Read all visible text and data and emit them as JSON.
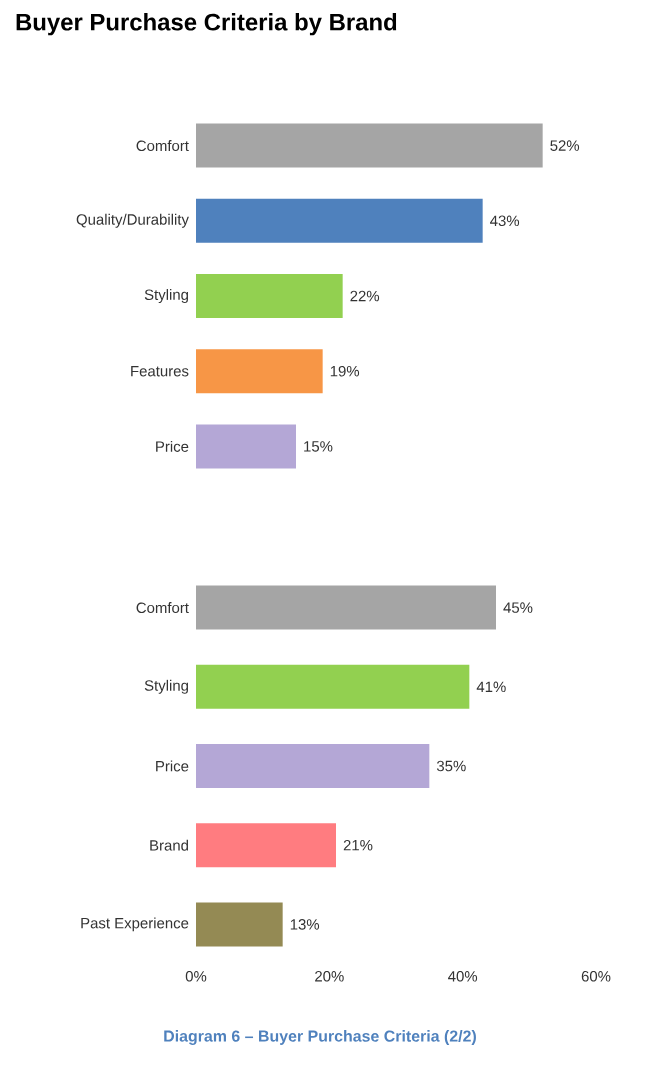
{
  "chart_data": [
    {
      "type": "bar",
      "orientation": "horizontal",
      "title": "Buyer Purchase Criteria by Brand",
      "categories": [
        "Comfort",
        "Quality/Durability",
        "Styling",
        "Features",
        "Price"
      ],
      "values": [
        52,
        43,
        22,
        19,
        15
      ],
      "colors": [
        "#a5a5a5",
        "#4f81bd",
        "#92d050",
        "#f79646",
        "#b4a7d6"
      ],
      "value_labels": [
        "52%",
        "43%",
        "22%",
        "19%",
        "15%"
      ],
      "xlim": [
        0,
        60
      ],
      "tick_labels": "y"
    },
    {
      "type": "bar",
      "orientation": "horizontal",
      "categories": [
        "Comfort",
        "Styling",
        "Price",
        "Brand",
        "Past Experience"
      ],
      "values": [
        45,
        41,
        35,
        21,
        13
      ],
      "colors": [
        "#a5a5a5",
        "#92d050",
        "#b4a7d6",
        "#ff7c80",
        "#948a54"
      ],
      "value_labels": [
        "45%",
        "41%",
        "35%",
        "21%",
        "13%"
      ],
      "xlim": [
        0,
        60
      ],
      "xticks": [
        {
          "value": 0,
          "label": "0%"
        },
        {
          "value": 20,
          "label": "20%"
        },
        {
          "value": 40,
          "label": "40%"
        },
        {
          "value": 60,
          "label": "60%"
        }
      ],
      "annotations": [
        "Diagram 6 – Buyer Purchase Criteria (2/2)"
      ]
    }
  ]
}
